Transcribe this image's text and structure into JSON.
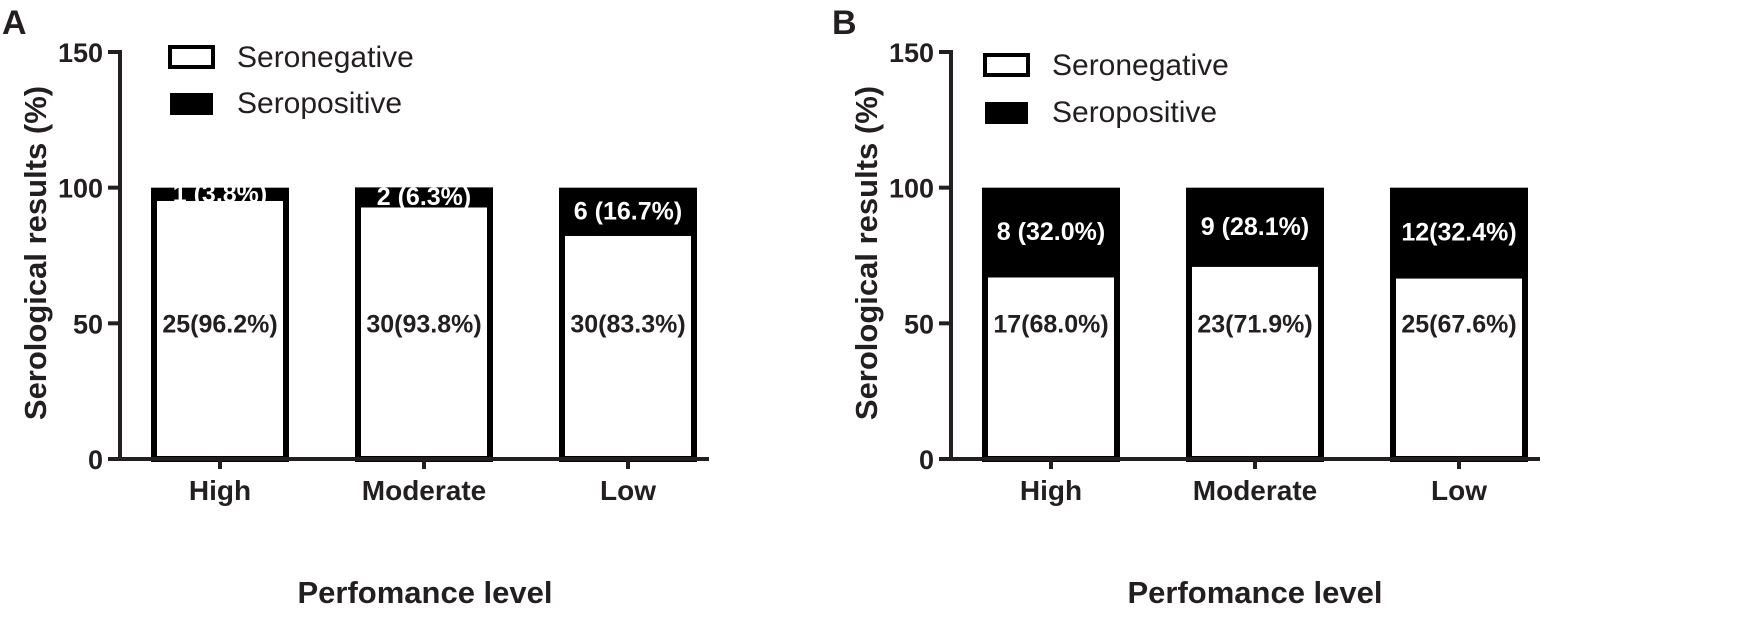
{
  "chart_data": [
    {
      "panel": "A",
      "type": "bar",
      "stacked": true,
      "categories": [
        "High",
        "Moderate",
        "Low"
      ],
      "series": [
        {
          "name": "Seronegative",
          "color": "#ffffff",
          "values": [
            96.2,
            93.8,
            83.3
          ],
          "labels": [
            "25(96.2%)",
            "30(93.8%)",
            "30(83.3%)"
          ]
        },
        {
          "name": "Seropositive",
          "color": "#000000",
          "values": [
            3.8,
            6.3,
            16.7
          ],
          "labels": [
            "1 (3.8%)",
            "2 (6.3%)",
            "6 (16.7%)"
          ]
        }
      ],
      "xlabel": "Perfomance level",
      "ylabel": "Serological results (%)",
      "ylim": [
        0,
        150
      ],
      "yticks": [
        "0",
        "50",
        "100",
        "150"
      ],
      "legend_position": "top-left"
    },
    {
      "panel": "B",
      "type": "bar",
      "stacked": true,
      "categories": [
        "High",
        "Moderate",
        "Low"
      ],
      "series": [
        {
          "name": "Seronegative",
          "color": "#ffffff",
          "values": [
            68.0,
            71.9,
            67.6
          ],
          "labels": [
            "17(68.0%)",
            "23(71.9%)",
            "25(67.6%)"
          ]
        },
        {
          "name": "Seropositive",
          "color": "#000000",
          "values": [
            32.0,
            28.1,
            32.4
          ],
          "labels": [
            "8 (32.0%)",
            "9 (28.1%)",
            "12(32.4%)"
          ]
        }
      ],
      "xlabel": "Perfomance level",
      "ylabel": "Serological results (%)",
      "ylim": [
        0,
        150
      ],
      "yticks": [
        "0",
        "50",
        "100",
        "150"
      ],
      "legend_position": "top-left"
    }
  ]
}
